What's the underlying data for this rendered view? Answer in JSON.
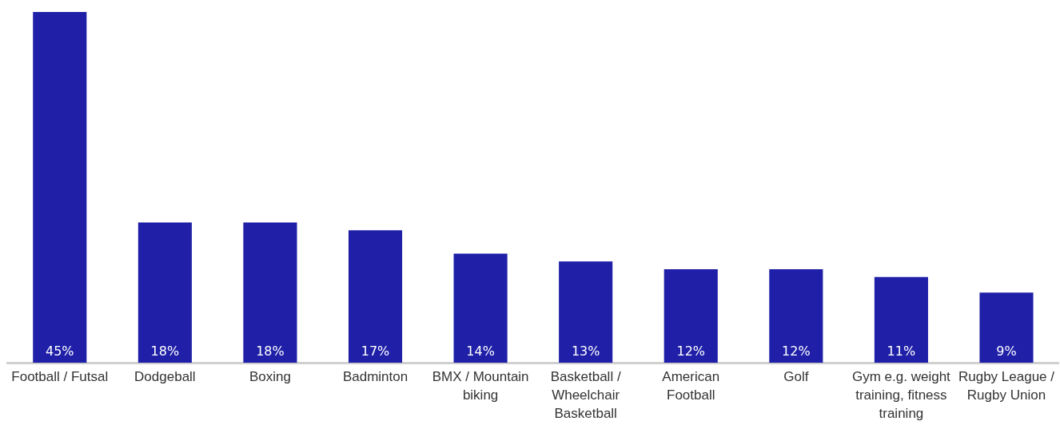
{
  "chart_data": {
    "type": "bar",
    "categories": [
      "Football / Futsal",
      "Dodgeball",
      "Boxing",
      "Badminton",
      "BMX / Mountain biking",
      "Basketball / Wheelchair Basketball",
      "American Football",
      "Golf",
      "Gym e.g. weight training, fitness training",
      "Rugby League / Rugby Union"
    ],
    "values": [
      45,
      18,
      18,
      17,
      14,
      13,
      12,
      12,
      11,
      9
    ],
    "value_labels": [
      "45%",
      "18%",
      "18%",
      "17%",
      "14%",
      "13%",
      "12%",
      "12%",
      "11%",
      "9%"
    ],
    "color": "#1f1fa8",
    "ylim": [
      0,
      45
    ],
    "tick_labels": "x",
    "grid": false,
    "legend": false
  }
}
